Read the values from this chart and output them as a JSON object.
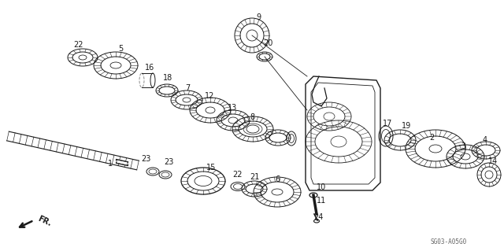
{
  "bg_color": "#ffffff",
  "diagram_code": "SG03-A05G0",
  "gear_color": "#1a1a1a",
  "fig_w": 6.4,
  "fig_h": 3.19,
  "dpi": 100
}
